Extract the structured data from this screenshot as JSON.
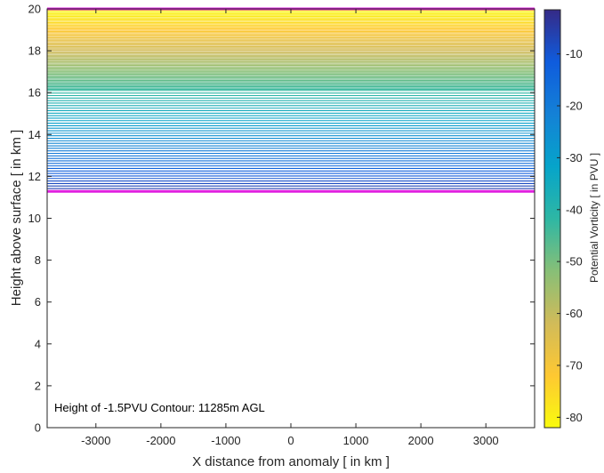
{
  "chart_data": {
    "type": "contour",
    "xlabel": "X distance from anomaly [ in km ]",
    "ylabel": "Height above surface [ in km ]",
    "xlim": [
      -3750,
      3750
    ],
    "ylim": [
      0,
      20
    ],
    "xticks": [
      -3000,
      -2000,
      -1000,
      0,
      1000,
      2000,
      3000
    ],
    "yticks": [
      0,
      2,
      4,
      6,
      8,
      10,
      12,
      14,
      16,
      18,
      20
    ],
    "grid": false,
    "annotation": "Height of -1.5PVU Contour: 11285m AGL",
    "contour_heights_km": {
      "start": 11.3,
      "end": 20,
      "dense_below_km": 16,
      "spacing_below_km": 0.12,
      "spacing_above_km": 0.06
    },
    "highlight_contours": [
      {
        "label": "-1.5PVU contour",
        "height_km": 11.285,
        "color": "#e020e0"
      },
      {
        "label": "top boundary",
        "height_km": 20,
        "color": "#e020e0"
      }
    ],
    "colorbar": {
      "label": "Potential Vorticity [ in PVU ]",
      "range": [
        -82,
        -1.5
      ],
      "ticks": [
        -10,
        -20,
        -30,
        -40,
        -50,
        -60,
        -70,
        -80
      ],
      "colormap": "parula",
      "colors": [
        "#352a87",
        "#0f5cdd",
        "#1481d6",
        "#06a4ca",
        "#2eb7a4",
        "#87bf77",
        "#d1bb59",
        "#fec832",
        "#f9fb0e"
      ]
    }
  }
}
